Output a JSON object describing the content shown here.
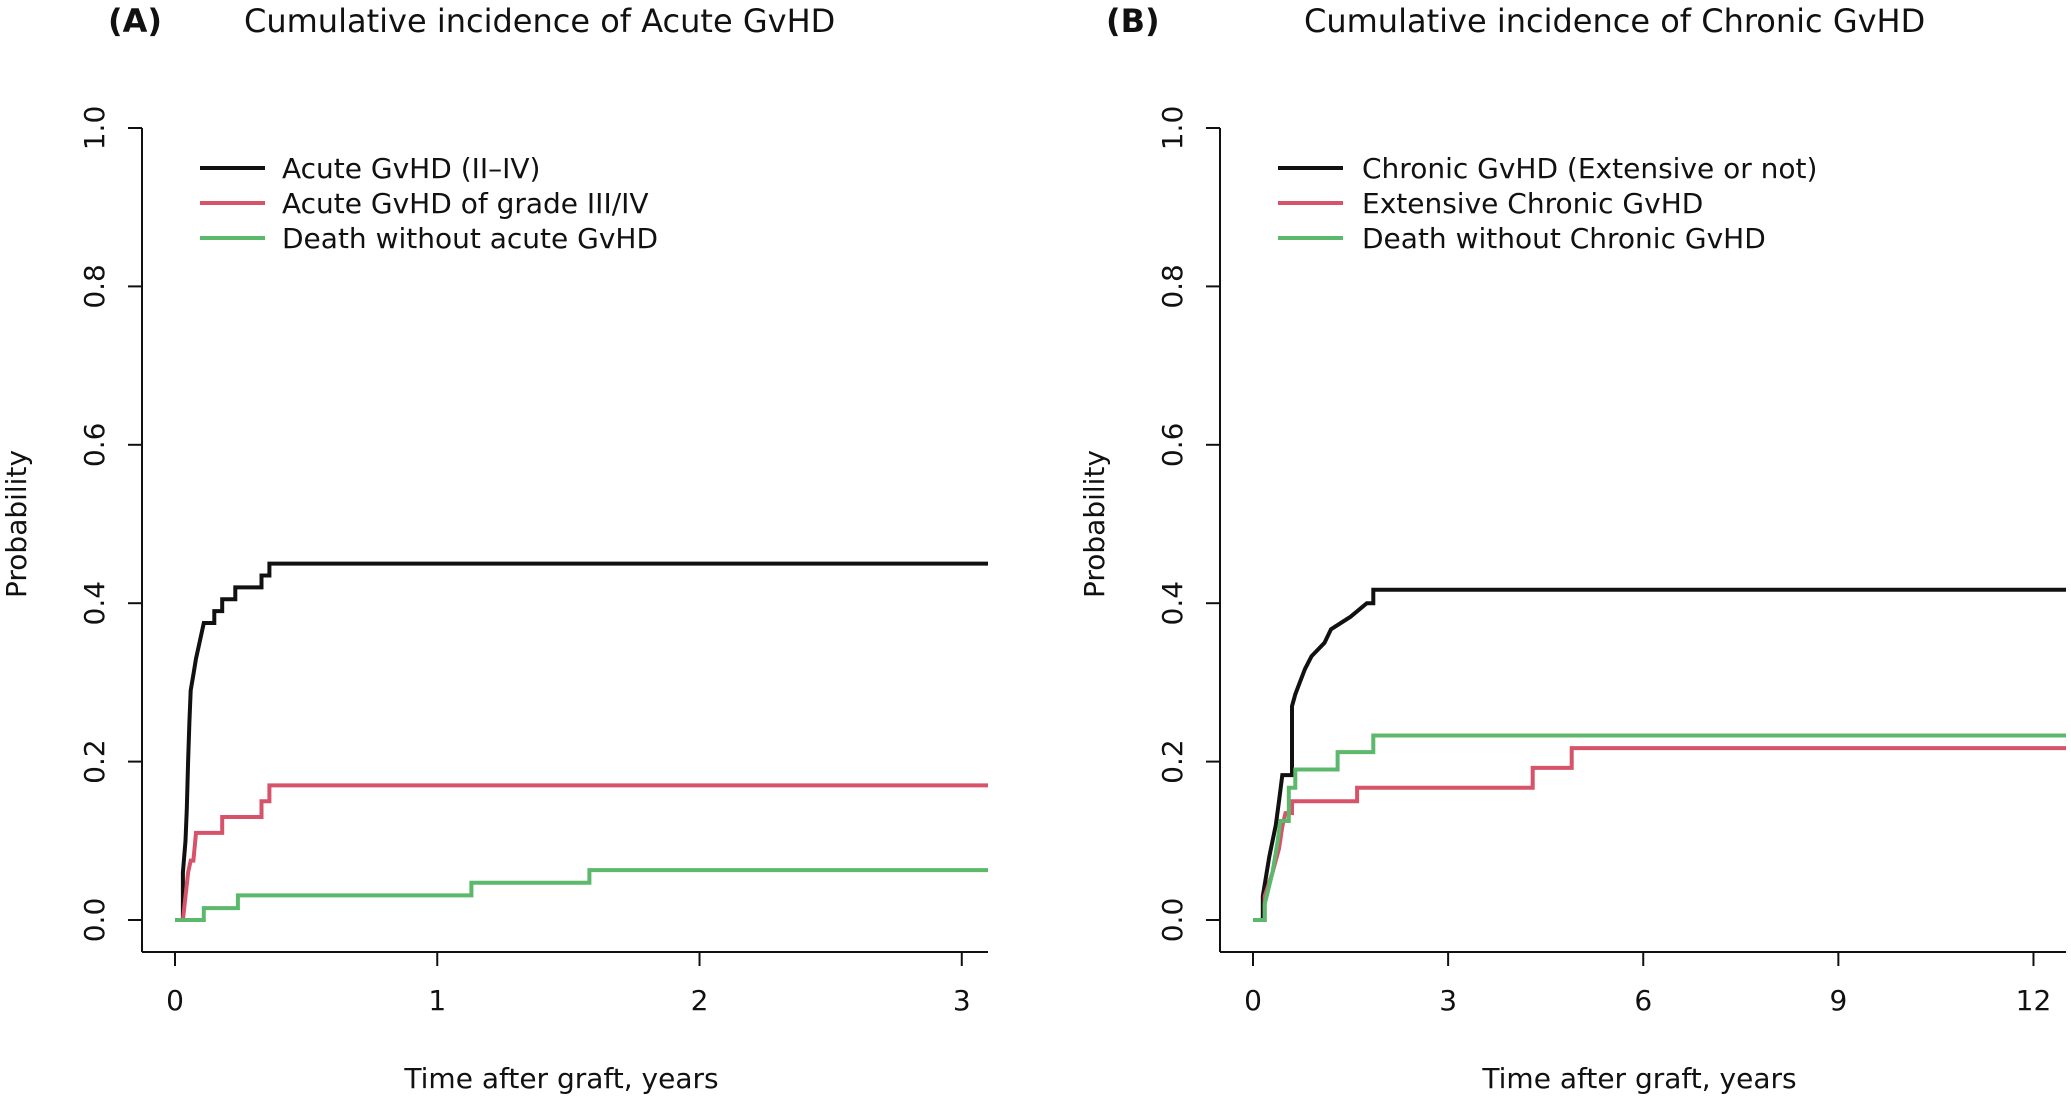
{
  "figure": {
    "panels": [
      {
        "letter": "(A)",
        "title": "Cumulative incidence of Acute GvHD"
      },
      {
        "letter": "(B)",
        "title": "Cumulative incidence of Chronic GvHD"
      }
    ]
  },
  "colors": {
    "black": "#111111",
    "red": "#d6536a",
    "green": "#5cb86a"
  },
  "chart_data": [
    {
      "type": "line",
      "step": true,
      "title": "Cumulative incidence of Acute GvHD",
      "xlabel": "Time after graft, years",
      "ylabel": "Probability",
      "xlim": [
        0,
        3.1
      ],
      "ylim": [
        0,
        1.0
      ],
      "xticks": [
        0,
        1,
        2,
        3
      ],
      "yticks": [
        0.0,
        0.2,
        0.4,
        0.6,
        0.8,
        1.0
      ],
      "ytick_labels": [
        "0.0",
        "0.2",
        "0.4",
        "0.6",
        "0.8",
        "1.0"
      ],
      "legend_position": "top-left",
      "series": [
        {
          "name": "Acute GvHD (II–IV)",
          "color": "#111111",
          "points": [
            [
              0,
              0
            ],
            [
              0.03,
              0
            ],
            [
              0.03,
              0.06
            ],
            [
              0.04,
              0.1
            ],
            [
              0.045,
              0.14
            ],
            [
              0.05,
              0.2
            ],
            [
              0.055,
              0.25
            ],
            [
              0.06,
              0.29
            ],
            [
              0.07,
              0.31
            ],
            [
              0.08,
              0.33
            ],
            [
              0.09,
              0.345
            ],
            [
              0.11,
              0.375
            ],
            [
              0.15,
              0.375
            ],
            [
              0.15,
              0.39
            ],
            [
              0.18,
              0.39
            ],
            [
              0.18,
              0.405
            ],
            [
              0.23,
              0.405
            ],
            [
              0.23,
              0.42
            ],
            [
              0.33,
              0.42
            ],
            [
              0.33,
              0.435
            ],
            [
              0.36,
              0.435
            ],
            [
              0.36,
              0.45
            ],
            [
              3.1,
              0.45
            ]
          ]
        },
        {
          "name": "Acute GvHD of grade III/IV",
          "color": "#d6536a",
          "points": [
            [
              0.03,
              0
            ],
            [
              0.04,
              0.03
            ],
            [
              0.05,
              0.06
            ],
            [
              0.06,
              0.075
            ],
            [
              0.07,
              0.075
            ],
            [
              0.08,
              0.11
            ],
            [
              0.18,
              0.11
            ],
            [
              0.18,
              0.13
            ],
            [
              0.33,
              0.13
            ],
            [
              0.33,
              0.15
            ],
            [
              0.36,
              0.15
            ],
            [
              0.36,
              0.17
            ],
            [
              3.1,
              0.17
            ]
          ]
        },
        {
          "name": "Death without acute GvHD",
          "color": "#5cb86a",
          "points": [
            [
              0,
              0
            ],
            [
              0.11,
              0
            ],
            [
              0.11,
              0.015
            ],
            [
              0.24,
              0.015
            ],
            [
              0.24,
              0.031
            ],
            [
              1.13,
              0.031
            ],
            [
              1.13,
              0.047
            ],
            [
              1.58,
              0.047
            ],
            [
              1.58,
              0.063
            ],
            [
              3.1,
              0.063
            ]
          ]
        }
      ]
    },
    {
      "type": "line",
      "step": true,
      "title": "Cumulative incidence of Chronic GvHD",
      "xlabel": "Time after graft, years",
      "ylabel": "Probability",
      "xlim": [
        0,
        12.5
      ],
      "ylim": [
        0,
        1.0
      ],
      "xticks": [
        0,
        3,
        6,
        9,
        12
      ],
      "yticks": [
        0.0,
        0.2,
        0.4,
        0.6,
        0.8,
        1.0
      ],
      "ytick_labels": [
        "0.0",
        "0.2",
        "0.4",
        "0.6",
        "0.8",
        "1.0"
      ],
      "legend_position": "top-left",
      "series": [
        {
          "name": "Chronic GvHD (Extensive or not)",
          "color": "#111111",
          "points": [
            [
              0,
              0
            ],
            [
              0.15,
              0
            ],
            [
              0.15,
              0.03
            ],
            [
              0.25,
              0.08
            ],
            [
              0.35,
              0.12
            ],
            [
              0.4,
              0.15
            ],
            [
              0.45,
              0.183
            ],
            [
              0.6,
              0.183
            ],
            [
              0.6,
              0.27
            ],
            [
              0.65,
              0.285
            ],
            [
              0.72,
              0.3
            ],
            [
              0.8,
              0.317
            ],
            [
              0.9,
              0.333
            ],
            [
              1.1,
              0.35
            ],
            [
              1.2,
              0.367
            ],
            [
              1.5,
              0.383
            ],
            [
              1.75,
              0.4
            ],
            [
              1.85,
              0.4
            ],
            [
              1.85,
              0.417
            ],
            [
              12.5,
              0.417
            ]
          ]
        },
        {
          "name": "Extensive Chronic GvHD",
          "color": "#d6536a",
          "points": [
            [
              0.1,
              0
            ],
            [
              0.18,
              0
            ],
            [
              0.18,
              0.03
            ],
            [
              0.3,
              0.06
            ],
            [
              0.4,
              0.09
            ],
            [
              0.45,
              0.118
            ],
            [
              0.5,
              0.135
            ],
            [
              0.6,
              0.135
            ],
            [
              0.6,
              0.15
            ],
            [
              1.6,
              0.15
            ],
            [
              1.6,
              0.167
            ],
            [
              4.3,
              0.167
            ],
            [
              4.3,
              0.192
            ],
            [
              4.9,
              0.192
            ],
            [
              4.9,
              0.217
            ],
            [
              12.5,
              0.217
            ]
          ]
        },
        {
          "name": "Death without Chronic GvHD",
          "color": "#5cb86a",
          "points": [
            [
              0,
              0
            ],
            [
              0.18,
              0
            ],
            [
              0.18,
              0.02
            ],
            [
              0.3,
              0.06
            ],
            [
              0.38,
              0.1
            ],
            [
              0.42,
              0.125
            ],
            [
              0.55,
              0.125
            ],
            [
              0.55,
              0.167
            ],
            [
              0.65,
              0.167
            ],
            [
              0.65,
              0.19
            ],
            [
              1.3,
              0.19
            ],
            [
              1.3,
              0.212
            ],
            [
              1.85,
              0.212
            ],
            [
              1.85,
              0.233
            ],
            [
              12.5,
              0.233
            ]
          ]
        }
      ]
    }
  ]
}
